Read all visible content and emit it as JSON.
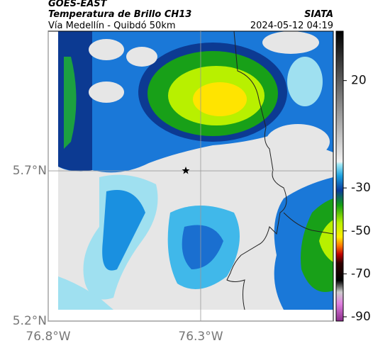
{
  "header": {
    "satellite": "GOES-EAST",
    "product": "Temperatura de Brillo CH13",
    "route": "Vía Medellín - Quibdó 50km",
    "source": "SIATA",
    "timestamp": "2024-05-12 04:19"
  },
  "chart_data": {
    "type": "map",
    "xlim": [
      -76.8,
      -75.865
    ],
    "ylim": [
      5.2,
      6.165
    ],
    "xticks": [
      {
        "value": -76.8,
        "label": "76.8°W"
      },
      {
        "value": -76.3,
        "label": "76.3°W"
      }
    ],
    "yticks": [
      {
        "value": 5.2,
        "label": "5.2°N"
      },
      {
        "value": 5.7,
        "label": "5.7°N"
      }
    ],
    "grid": true,
    "colorbar": {
      "lim": [
        -92,
        43
      ],
      "ticks": [
        20,
        -30,
        -50,
        -70,
        -90
      ]
    }
  }
}
